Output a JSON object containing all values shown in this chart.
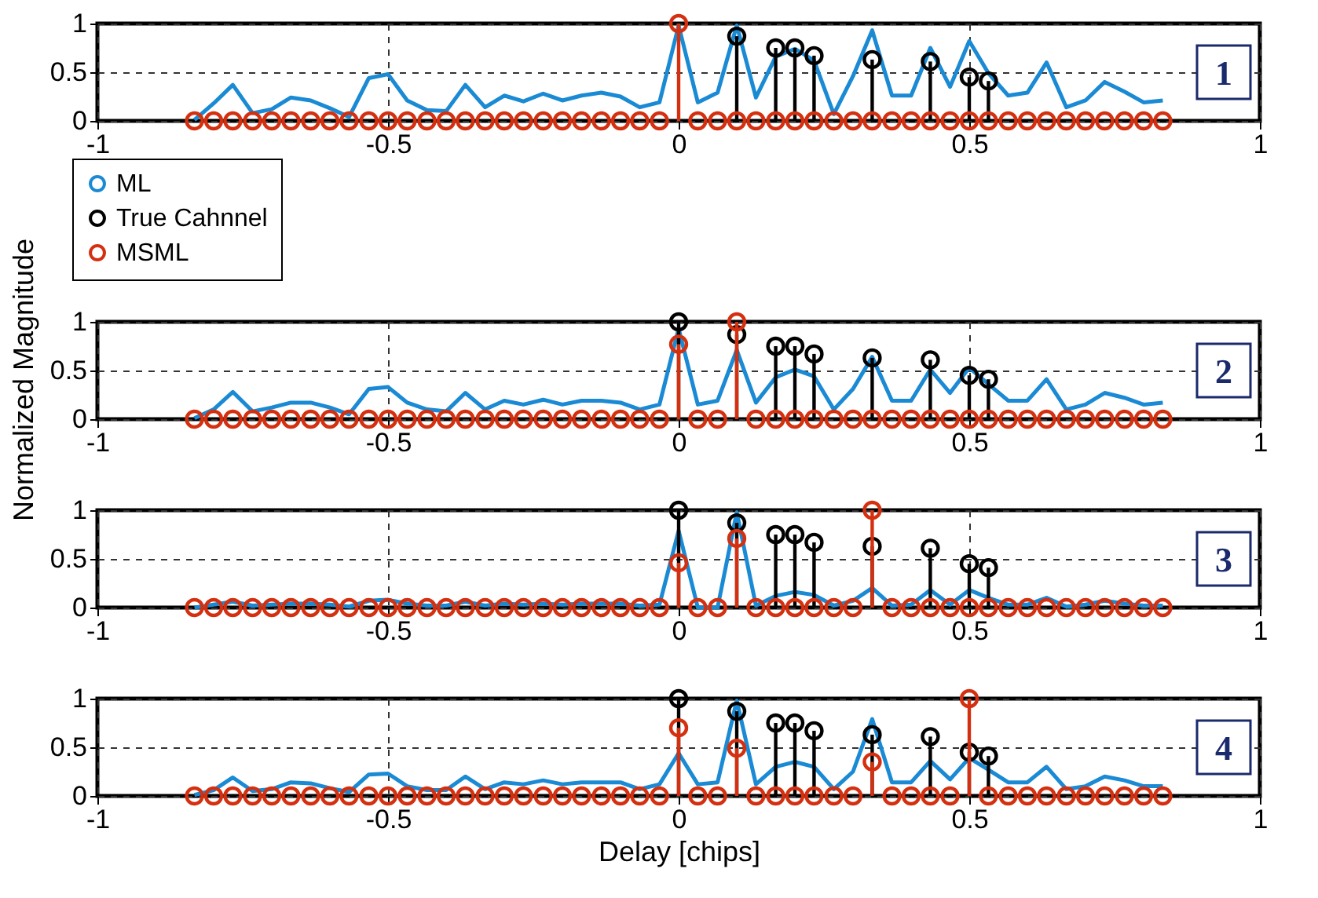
{
  "chart_data": [
    {
      "type": "lollipop",
      "xlim": [
        -1,
        1
      ],
      "ylim": [
        0,
        1
      ],
      "xticks": [
        -1,
        -0.5,
        0,
        0.5,
        1
      ],
      "yticks": [
        0,
        0.5,
        1
      ],
      "grid": true,
      "legend": "bottom left",
      "annotations": [
        "1"
      ],
      "x": [
        -0.833,
        -0.8,
        -0.767,
        -0.733,
        -0.7,
        -0.667,
        -0.633,
        -0.6,
        -0.567,
        -0.533,
        -0.5,
        -0.467,
        -0.433,
        -0.4,
        -0.367,
        -0.333,
        -0.3,
        -0.267,
        -0.233,
        -0.2,
        -0.167,
        -0.133,
        -0.1,
        -0.067,
        -0.033,
        0,
        0.033,
        0.067,
        0.1,
        0.133,
        0.167,
        0.2,
        0.233,
        0.267,
        0.3,
        0.333,
        0.367,
        0.4,
        0.433,
        0.467,
        0.5,
        0.533,
        0.567,
        0.6,
        0.633,
        0.667,
        0.7,
        0.733,
        0.767,
        0.8,
        0.833
      ],
      "series": [
        {
          "name": "ML",
          "type": "line",
          "color": "#1a8ad4",
          "values": [
            0.01,
            0.18,
            0.37,
            0.08,
            0.12,
            0.24,
            0.21,
            0.13,
            0.04,
            0.44,
            0.48,
            0.21,
            0.11,
            0.1,
            0.37,
            0.14,
            0.26,
            0.2,
            0.28,
            0.21,
            0.26,
            0.29,
            0.25,
            0.14,
            0.19,
            0.98,
            0.19,
            0.29,
            0.98,
            0.24,
            0.66,
            0.74,
            0.62,
            0.07,
            0.46,
            0.93,
            0.26,
            0.26,
            0.75,
            0.35,
            0.82,
            0.49,
            0.26,
            0.29,
            0.6,
            0.14,
            0.21,
            0.4,
            0.3,
            0.19,
            0.21
          ]
        },
        {
          "name": "True Cahnnel",
          "marker": "circle",
          "color": "#000000",
          "x": [
            0.1,
            0.167,
            0.2,
            0.233,
            0.333,
            0.433,
            0.5,
            0.533
          ],
          "values": [
            0.87,
            0.75,
            0.75,
            0.67,
            0.63,
            0.61,
            0.45,
            0.41
          ]
        },
        {
          "name": "MSML",
          "marker": "circle",
          "color": "#d43010",
          "values": [
            0,
            0,
            0,
            0,
            0,
            0,
            0,
            0,
            0,
            0,
            0,
            0,
            0,
            0,
            0,
            0,
            0,
            0,
            0,
            0,
            0,
            0,
            0,
            0,
            0,
            1,
            0,
            0,
            0,
            0,
            0,
            0,
            0,
            0,
            0,
            0,
            0,
            0,
            0,
            0,
            0,
            0,
            0,
            0,
            0,
            0,
            0,
            0,
            0,
            0,
            0
          ]
        }
      ]
    },
    {
      "type": "lollipop",
      "xlim": [
        -1,
        1
      ],
      "ylim": [
        0,
        1
      ],
      "xticks": [
        -1,
        -0.5,
        0,
        0.5,
        1
      ],
      "yticks": [
        0,
        0.5,
        1
      ],
      "grid": true,
      "ylabel": "Normalized Magnitude",
      "annotations": [
        "2"
      ],
      "x": [
        -0.833,
        -0.8,
        -0.767,
        -0.733,
        -0.7,
        -0.667,
        -0.633,
        -0.6,
        -0.567,
        -0.533,
        -0.5,
        -0.467,
        -0.433,
        -0.4,
        -0.367,
        -0.333,
        -0.3,
        -0.267,
        -0.233,
        -0.2,
        -0.167,
        -0.133,
        -0.1,
        -0.067,
        -0.033,
        0,
        0.033,
        0.067,
        0.1,
        0.133,
        0.167,
        0.2,
        0.233,
        0.267,
        0.3,
        0.333,
        0.367,
        0.4,
        0.433,
        0.467,
        0.5,
        0.533,
        0.567,
        0.6,
        0.633,
        0.667,
        0.7,
        0.733,
        0.767,
        0.8,
        0.833
      ],
      "series": [
        {
          "name": "ML",
          "type": "line",
          "color": "#1a8ad4",
          "values": [
            0.01,
            0.1,
            0.28,
            0.08,
            0.12,
            0.17,
            0.17,
            0.12,
            0.05,
            0.31,
            0.33,
            0.17,
            0.1,
            0.08,
            0.27,
            0.1,
            0.19,
            0.15,
            0.2,
            0.15,
            0.19,
            0.19,
            0.17,
            0.1,
            0.15,
            0.93,
            0.15,
            0.19,
            0.71,
            0.17,
            0.43,
            0.51,
            0.44,
            0.1,
            0.31,
            0.64,
            0.19,
            0.19,
            0.51,
            0.27,
            0.53,
            0.36,
            0.19,
            0.19,
            0.41,
            0.1,
            0.15,
            0.27,
            0.22,
            0.15,
            0.17
          ]
        },
        {
          "name": "True Cahnnel",
          "marker": "circle",
          "color": "#000000",
          "x": [
            0,
            0.1,
            0.167,
            0.2,
            0.233,
            0.333,
            0.433,
            0.5,
            0.533
          ],
          "values": [
            1,
            0.87,
            0.75,
            0.75,
            0.67,
            0.63,
            0.61,
            0.45,
            0.41
          ]
        },
        {
          "name": "MSML",
          "marker": "circle",
          "color": "#d43010",
          "values": [
            0,
            0,
            0,
            0,
            0,
            0,
            0,
            0,
            0,
            0,
            0,
            0,
            0,
            0,
            0,
            0,
            0,
            0,
            0,
            0,
            0,
            0,
            0,
            0,
            0,
            0.77,
            0,
            0,
            1,
            0,
            0,
            0,
            0,
            0,
            0,
            0,
            0,
            0,
            0,
            0,
            0,
            0,
            0,
            0,
            0,
            0,
            0,
            0,
            0,
            0,
            0
          ]
        }
      ]
    },
    {
      "type": "lollipop",
      "xlim": [
        -1,
        1
      ],
      "ylim": [
        0,
        1
      ],
      "xticks": [
        -1,
        -0.5,
        0,
        0.5,
        1
      ],
      "yticks": [
        0,
        0.5,
        1
      ],
      "grid": true,
      "annotations": [
        "3"
      ],
      "x": [
        -0.833,
        -0.8,
        -0.767,
        -0.733,
        -0.7,
        -0.667,
        -0.633,
        -0.6,
        -0.567,
        -0.533,
        -0.5,
        -0.467,
        -0.433,
        -0.4,
        -0.367,
        -0.333,
        -0.3,
        -0.267,
        -0.233,
        -0.2,
        -0.167,
        -0.133,
        -0.1,
        -0.067,
        -0.033,
        0,
        0.033,
        0.067,
        0.1,
        0.133,
        0.167,
        0.2,
        0.233,
        0.267,
        0.3,
        0.333,
        0.367,
        0.4,
        0.433,
        0.467,
        0.5,
        0.533,
        0.567,
        0.6,
        0.633,
        0.667,
        0.7,
        0.733,
        0.767,
        0.8,
        0.833
      ],
      "series": [
        {
          "name": "ML",
          "type": "line",
          "color": "#1a8ad4",
          "values": [
            0,
            0.03,
            0.06,
            0.02,
            0.03,
            0.04,
            0.04,
            0.03,
            0.01,
            0.07,
            0.08,
            0.04,
            0.02,
            0.02,
            0.06,
            0.02,
            0.04,
            0.03,
            0.04,
            0.03,
            0.04,
            0.04,
            0.04,
            0.02,
            0.03,
            0.79,
            0,
            0,
            0.98,
            0.02,
            0.12,
            0.16,
            0.13,
            0.02,
            0.07,
            0.2,
            0.02,
            0.03,
            0.18,
            0.03,
            0.18,
            0.1,
            0.03,
            0.03,
            0.1,
            0.01,
            0.03,
            0.07,
            0.04,
            0.02,
            0.02
          ]
        },
        {
          "name": "True Cahnnel",
          "marker": "circle",
          "color": "#000000",
          "x": [
            0,
            0.1,
            0.167,
            0.2,
            0.233,
            0.333,
            0.433,
            0.5,
            0.533
          ],
          "values": [
            1,
            0.87,
            0.75,
            0.75,
            0.67,
            0.63,
            0.61,
            0.45,
            0.41
          ]
        },
        {
          "name": "MSML",
          "marker": "circle",
          "color": "#d43010",
          "values": [
            0,
            0,
            0,
            0,
            0,
            0,
            0,
            0,
            0,
            0,
            0,
            0,
            0,
            0,
            0,
            0,
            0,
            0,
            0,
            0,
            0,
            0,
            0,
            0,
            0,
            0.46,
            0,
            0,
            0.71,
            0,
            0,
            0,
            0,
            0,
            0,
            1,
            0,
            0,
            0,
            0,
            0,
            0,
            0,
            0,
            0,
            0,
            0,
            0,
            0,
            0,
            0
          ]
        }
      ]
    },
    {
      "type": "lollipop",
      "xlim": [
        -1,
        1
      ],
      "ylim": [
        0,
        1
      ],
      "xticks": [
        -1,
        -0.5,
        0,
        0.5,
        1
      ],
      "yticks": [
        0,
        0.5,
        1
      ],
      "grid": true,
      "xlabel": "Delay [chips]",
      "annotations": [
        "4"
      ],
      "x": [
        -0.833,
        -0.8,
        -0.767,
        -0.733,
        -0.7,
        -0.667,
        -0.633,
        -0.6,
        -0.567,
        -0.533,
        -0.5,
        -0.467,
        -0.433,
        -0.4,
        -0.367,
        -0.333,
        -0.3,
        -0.267,
        -0.233,
        -0.2,
        -0.167,
        -0.133,
        -0.1,
        -0.067,
        -0.033,
        0,
        0.033,
        0.067,
        0.1,
        0.133,
        0.167,
        0.2,
        0.233,
        0.267,
        0.3,
        0.333,
        0.367,
        0.4,
        0.433,
        0.467,
        0.5,
        0.533,
        0.567,
        0.6,
        0.633,
        0.667,
        0.7,
        0.733,
        0.767,
        0.8,
        0.833
      ],
      "series": [
        {
          "name": "ML",
          "type": "line",
          "color": "#1a8ad4",
          "values": [
            0.01,
            0.06,
            0.19,
            0.05,
            0.07,
            0.14,
            0.13,
            0.08,
            0.04,
            0.22,
            0.23,
            0.1,
            0.06,
            0.06,
            0.2,
            0.07,
            0.14,
            0.12,
            0.16,
            0.12,
            0.14,
            0.14,
            0.14,
            0.07,
            0.12,
            0.44,
            0.12,
            0.14,
            0.98,
            0.12,
            0.3,
            0.35,
            0.3,
            0.07,
            0.25,
            0.79,
            0.14,
            0.14,
            0.36,
            0.17,
            0.39,
            0.27,
            0.14,
            0.14,
            0.3,
            0.07,
            0.1,
            0.2,
            0.16,
            0.1,
            0.1
          ]
        },
        {
          "name": "True Cahnnel",
          "marker": "circle",
          "color": "#000000",
          "x": [
            0,
            0.1,
            0.167,
            0.2,
            0.233,
            0.333,
            0.433,
            0.5,
            0.533
          ],
          "values": [
            1,
            0.87,
            0.75,
            0.75,
            0.67,
            0.63,
            0.61,
            0.45,
            0.41
          ]
        },
        {
          "name": "MSML",
          "marker": "circle",
          "color": "#d43010",
          "values": [
            0,
            0,
            0,
            0,
            0,
            0,
            0,
            0,
            0,
            0,
            0,
            0,
            0,
            0,
            0,
            0,
            0,
            0,
            0,
            0,
            0,
            0,
            0,
            0,
            0,
            0.7,
            0,
            0,
            0.49,
            0,
            0,
            0,
            0,
            0,
            0,
            0.35,
            0,
            0,
            0,
            0,
            1,
            0,
            0,
            0,
            0,
            0,
            0,
            0,
            0,
            0,
            0
          ]
        }
      ]
    }
  ]
}
